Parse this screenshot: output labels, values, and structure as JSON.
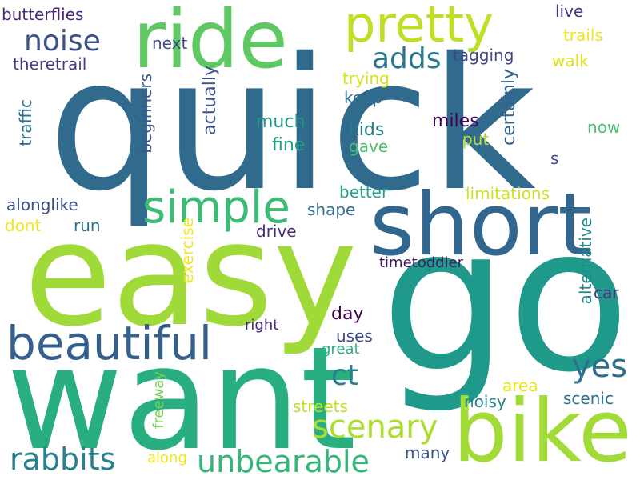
{
  "words": [
    {
      "text": "quick",
      "color": "#306b8e"
    },
    {
      "text": "go",
      "color": "#1f9a8a"
    },
    {
      "text": "easy",
      "color": "#a0da39"
    },
    {
      "text": "want",
      "color": "#29af7f"
    },
    {
      "text": "ride",
      "color": "#5ec962"
    },
    {
      "text": "short",
      "color": "#31668e"
    },
    {
      "text": "bike",
      "color": "#a2da37"
    },
    {
      "text": "pretty",
      "color": "#bddf26"
    },
    {
      "text": "beautiful",
      "color": "#355f8d"
    },
    {
      "text": "simple",
      "color": "#3bbb75"
    },
    {
      "text": "noise",
      "color": "#3b528b"
    },
    {
      "text": "adds",
      "color": "#2a788e"
    },
    {
      "text": "yes",
      "color": "#2d708e"
    },
    {
      "text": "scenary",
      "color": "#addc30"
    },
    {
      "text": "unbearable",
      "color": "#35b779"
    },
    {
      "text": "rabbits",
      "color": "#26828e"
    },
    {
      "text": "ct",
      "color": "#26828e"
    },
    {
      "text": "butterflies",
      "color": "#482878"
    },
    {
      "text": "theretrail",
      "color": "#433e85"
    },
    {
      "text": "next",
      "color": "#3e4a89"
    },
    {
      "text": "live",
      "color": "#46327e"
    },
    {
      "text": "trails",
      "color": "#f1e51d"
    },
    {
      "text": "walk",
      "color": "#dde318"
    },
    {
      "text": "tagging",
      "color": "#404688"
    },
    {
      "text": "trying",
      "color": "#d8e219"
    },
    {
      "text": "keep",
      "color": "#2e6e8e"
    },
    {
      "text": "miles",
      "color": "#440154"
    },
    {
      "text": "much",
      "color": "#1f988b"
    },
    {
      "text": "fine",
      "color": "#20a386"
    },
    {
      "text": "kids",
      "color": "#287c8e"
    },
    {
      "text": "gave",
      "color": "#4ac16d"
    },
    {
      "text": "put",
      "color": "#b5de2b"
    },
    {
      "text": "now",
      "color": "#4ac16d"
    },
    {
      "text": "s",
      "color": "#3f4788"
    },
    {
      "text": "better",
      "color": "#1fa287"
    },
    {
      "text": "limitations",
      "color": "#d0e11c"
    },
    {
      "text": "alonglike",
      "color": "#3c4f8a"
    },
    {
      "text": "dont",
      "color": "#f6e620"
    },
    {
      "text": "run",
      "color": "#2d708e"
    },
    {
      "text": "shape",
      "color": "#2f6c8e"
    },
    {
      "text": "drive",
      "color": "#472d7b"
    },
    {
      "text": "timetoddler",
      "color": "#3f1a63"
    },
    {
      "text": "car",
      "color": "#453781"
    },
    {
      "text": "day",
      "color": "#440154"
    },
    {
      "text": "right",
      "color": "#482576"
    },
    {
      "text": "uses",
      "color": "#3e4989"
    },
    {
      "text": "great",
      "color": "#2ab07f"
    },
    {
      "text": "area",
      "color": "#e5e419"
    },
    {
      "text": "scenic",
      "color": "#2c728e"
    },
    {
      "text": "streets",
      "color": "#c2df23"
    },
    {
      "text": "noisy",
      "color": "#26828e"
    },
    {
      "text": "along",
      "color": "#f1e51d"
    },
    {
      "text": "many",
      "color": "#3a548c"
    },
    {
      "text": "traffic",
      "color": "#2c728e"
    },
    {
      "text": "beginners",
      "color": "#38598c"
    },
    {
      "text": "actually",
      "color": "#3b528b"
    },
    {
      "text": "certainly",
      "color": "#33638d"
    },
    {
      "text": "exercise",
      "color": "#f4e61e"
    },
    {
      "text": "freeway",
      "color": "#77d153"
    },
    {
      "text": "alternative",
      "color": "#23898e"
    }
  ]
}
